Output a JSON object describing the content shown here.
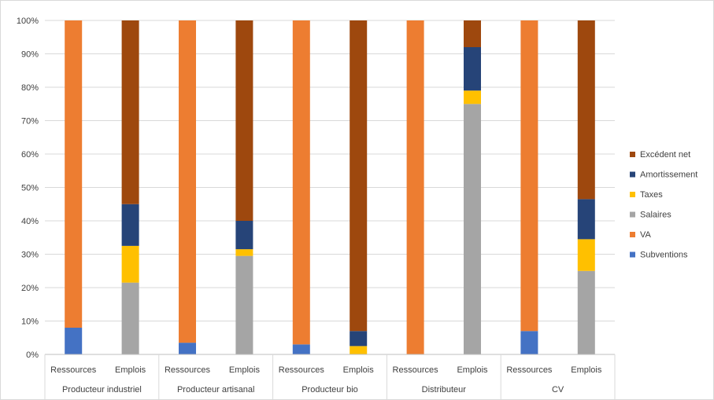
{
  "chart_data": {
    "type": "bar",
    "stacked": true,
    "percent_stacked": true,
    "groups": [
      "Producteur industriel",
      "Producteur artisanal",
      "Producteur bio",
      "Distributeur",
      "CV"
    ],
    "subcategories": [
      "Ressources",
      "Emplois"
    ],
    "series": [
      {
        "name": "Subventions",
        "color": "#4472C4",
        "values": [
          8,
          0,
          3.5,
          0,
          3,
          0,
          0,
          0,
          7,
          0
        ]
      },
      {
        "name": "VA",
        "color": "#ED7D31",
        "values": [
          92,
          0,
          96.5,
          0,
          97,
          0,
          100,
          0,
          93,
          0
        ]
      },
      {
        "name": "Salaires",
        "color": "#A5A5A5",
        "values": [
          0,
          21.5,
          0,
          29.5,
          0,
          0,
          0,
          75,
          0,
          25
        ]
      },
      {
        "name": "Taxes",
        "color": "#FFC000",
        "values": [
          0,
          11,
          0,
          2,
          0,
          2.5,
          0,
          4,
          0,
          9.5
        ]
      },
      {
        "name": "Amortissement",
        "color": "#264478",
        "values": [
          0,
          12.5,
          0,
          8.5,
          0,
          4.5,
          0,
          13,
          0,
          12
        ]
      },
      {
        "name": "Excédent net",
        "color": "#9E480E",
        "values": [
          0,
          55,
          0,
          60,
          0,
          93,
          0,
          8,
          0,
          53.5
        ]
      }
    ],
    "y_ticks": [
      "0%",
      "10%",
      "20%",
      "30%",
      "40%",
      "50%",
      "60%",
      "70%",
      "80%",
      "90%",
      "100%"
    ],
    "ylim": [
      0,
      100
    ],
    "legend_position": "right",
    "legend_order": [
      "Excédent net",
      "Amortissement",
      "Taxes",
      "Salaires",
      "VA",
      "Subventions"
    ],
    "title": "",
    "xlabel": "",
    "ylabel": ""
  }
}
